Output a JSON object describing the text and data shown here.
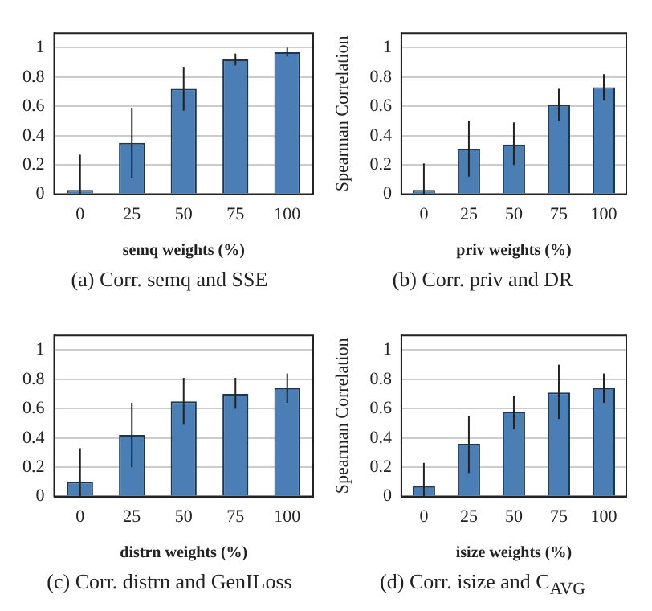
{
  "chart_data": [
    {
      "type": "bar",
      "title": "(a) Corr. semq and SSE",
      "xlabel": "semq weights (%)",
      "categories": [
        "0",
        "25",
        "50",
        "75",
        "100"
      ],
      "values": [
        0.03,
        0.35,
        0.72,
        0.92,
        0.97
      ],
      "errors": [
        [
          0,
          0.27
        ],
        [
          0.11,
          0.59
        ],
        [
          0.57,
          0.87
        ],
        [
          0.88,
          0.96
        ],
        [
          0.94,
          1.0
        ]
      ],
      "color": "#4a7eb4",
      "ylim": [
        0,
        1.1
      ],
      "yticks": [
        0,
        0.2,
        0.4,
        0.6,
        0.8,
        1
      ],
      "grid": "y",
      "legend": false
    },
    {
      "type": "bar",
      "title": "(b) Corr. priv and DR",
      "xlabel": "priv weights (%)",
      "ylabel": "Spearman Correlation",
      "categories": [
        "0",
        "25",
        "50",
        "75",
        "100"
      ],
      "values": [
        0.03,
        0.31,
        0.34,
        0.61,
        0.73
      ],
      "errors": [
        [
          0,
          0.21
        ],
        [
          0.12,
          0.5
        ],
        [
          0.2,
          0.49
        ],
        [
          0.5,
          0.72
        ],
        [
          0.64,
          0.82
        ]
      ],
      "color": "#4a7eb4",
      "ylim": [
        0,
        1.1
      ],
      "yticks": [
        0,
        0.2,
        0.4,
        0.6,
        0.8,
        1
      ],
      "grid": "y",
      "legend": false
    },
    {
      "type": "bar",
      "title": "(c) Corr. distrn and GenILoss",
      "xlabel": "distrn weights (%)",
      "categories": [
        "0",
        "25",
        "50",
        "75",
        "100"
      ],
      "values": [
        0.1,
        0.42,
        0.65,
        0.7,
        0.74
      ],
      "errors": [
        [
          0,
          0.33
        ],
        [
          0.2,
          0.64
        ],
        [
          0.49,
          0.81
        ],
        [
          0.6,
          0.81
        ],
        [
          0.64,
          0.84
        ]
      ],
      "color": "#4a7eb4",
      "ylim": [
        0,
        1.1
      ],
      "yticks": [
        0,
        0.2,
        0.4,
        0.6,
        0.8,
        1
      ],
      "grid": "y",
      "legend": false
    },
    {
      "type": "bar",
      "title": "(d) Corr. isize and C$_{AVG}$",
      "xlabel": "isize weights (%)",
      "ylabel": "Spearman Correlation",
      "categories": [
        "0",
        "25",
        "50",
        "75",
        "100"
      ],
      "values": [
        0.07,
        0.36,
        0.58,
        0.71,
        0.74
      ],
      "errors": [
        [
          0,
          0.23
        ],
        [
          0.16,
          0.55
        ],
        [
          0.46,
          0.69
        ],
        [
          0.53,
          0.9
        ],
        [
          0.64,
          0.84
        ]
      ],
      "color": "#4a7eb4",
      "ylim": [
        0,
        1.1
      ],
      "yticks": [
        0,
        0.2,
        0.4,
        0.6,
        0.8,
        1
      ],
      "grid": "y",
      "legend": false
    }
  ]
}
